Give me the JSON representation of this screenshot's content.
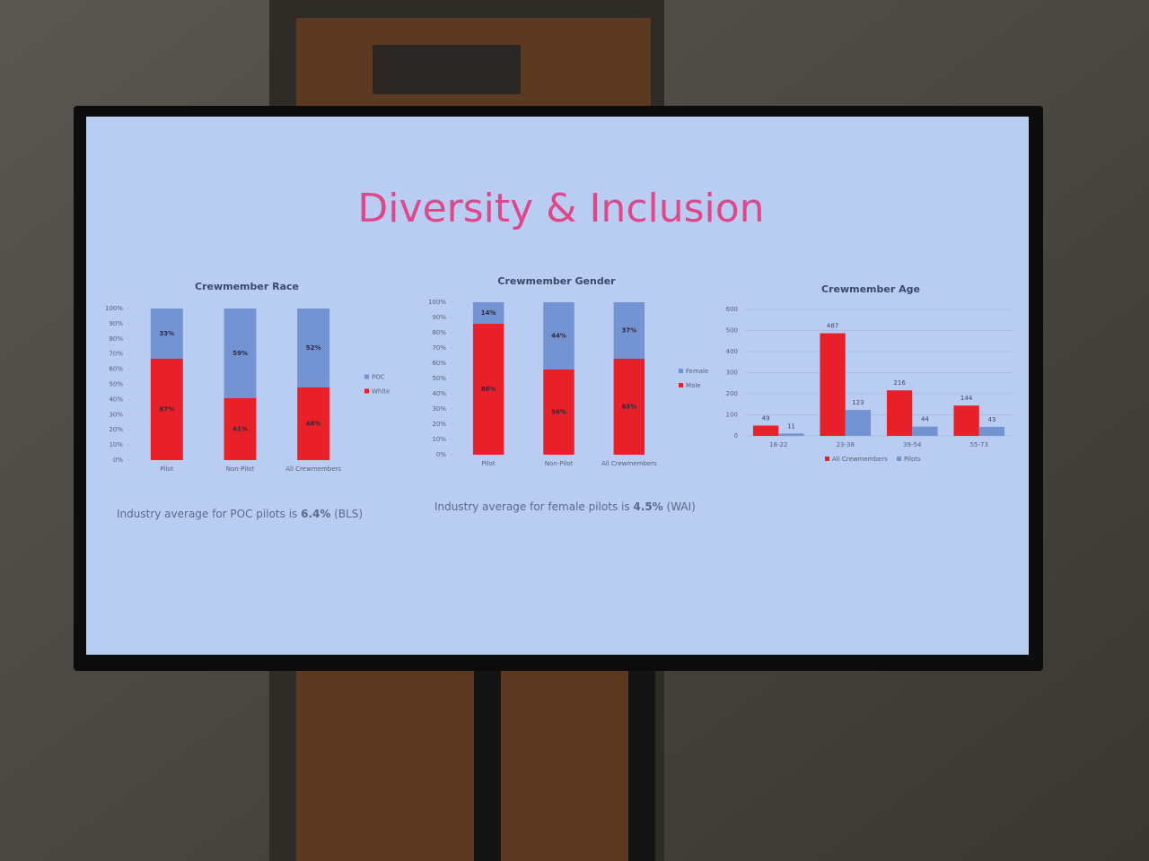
{
  "slide_title": "Diversity & Inclusion",
  "notes": [
    [
      "Industry average for POC pilots is ",
      "6.4%",
      " (BLS)"
    ],
    [
      "Industry average for female pilots is ",
      "4.5%",
      " (WAI)"
    ]
  ],
  "chart_data": [
    {
      "type": "stacked-bar",
      "title": "Crewmember Race",
      "categories": [
        "Pilot",
        "Non-Pilot",
        "All Crewmembers"
      ],
      "series": [
        {
          "name": "White",
          "color": "#e8202a",
          "values": [
            67,
            41,
            48
          ],
          "value_labels": [
            "67%",
            "41%",
            "48%"
          ]
        },
        {
          "name": "POC",
          "color": "#7393d3",
          "values": [
            33,
            59,
            52
          ],
          "value_labels": [
            "33%",
            "59%",
            "52%"
          ]
        }
      ],
      "ylim": [
        0,
        100
      ],
      "yticks": [
        {
          "value": 0,
          "label": "0%"
        },
        {
          "value": 10,
          "label": "10%"
        },
        {
          "value": 20,
          "label": "20%"
        },
        {
          "value": 30,
          "label": "30%"
        },
        {
          "value": 40,
          "label": "40%"
        },
        {
          "value": 50,
          "label": "50%"
        },
        {
          "value": 60,
          "label": "60%"
        },
        {
          "value": 70,
          "label": "70%"
        },
        {
          "value": 80,
          "label": "80%"
        },
        {
          "value": 90,
          "label": "90%"
        },
        {
          "value": 100,
          "label": "100%"
        }
      ],
      "legend": "right"
    },
    {
      "type": "stacked-bar",
      "title": "Crewmember Gender",
      "categories": [
        "Pilot",
        "Non-Pilot",
        "All Crewmembers"
      ],
      "series": [
        {
          "name": "Male",
          "color": "#e8202a",
          "values": [
            86,
            56,
            63
          ],
          "value_labels": [
            "86%",
            "56%",
            "63%"
          ]
        },
        {
          "name": "Female",
          "color": "#7393d3",
          "values": [
            14,
            44,
            37
          ],
          "value_labels": [
            "14%",
            "44%",
            "37%"
          ]
        }
      ],
      "ylim": [
        0,
        100
      ],
      "yticks": [
        {
          "value": 0,
          "label": "0%"
        },
        {
          "value": 10,
          "label": "10%"
        },
        {
          "value": 20,
          "label": "20%"
        },
        {
          "value": 30,
          "label": "30%"
        },
        {
          "value": 40,
          "label": "40%"
        },
        {
          "value": 50,
          "label": "50%"
        },
        {
          "value": 60,
          "label": "60%"
        },
        {
          "value": 70,
          "label": "70%"
        },
        {
          "value": 80,
          "label": "80%"
        },
        {
          "value": 90,
          "label": "90%"
        },
        {
          "value": 100,
          "label": "100%"
        }
      ],
      "legend": "right"
    },
    {
      "type": "grouped-bar",
      "title": "Crewmember Age",
      "categories": [
        "18-22",
        "23-38",
        "39-54",
        "55-73"
      ],
      "series": [
        {
          "name": "All Crewmembers",
          "color": "#e8202a",
          "values": [
            49,
            487,
            216,
            144
          ]
        },
        {
          "name": "Pilots",
          "color": "#7393d3",
          "values": [
            11,
            123,
            44,
            43
          ]
        }
      ],
      "ylim": [
        0,
        600
      ],
      "yticks": [
        0,
        100,
        200,
        300,
        400,
        500,
        600
      ],
      "grid": true,
      "legend": "bottom"
    }
  ]
}
